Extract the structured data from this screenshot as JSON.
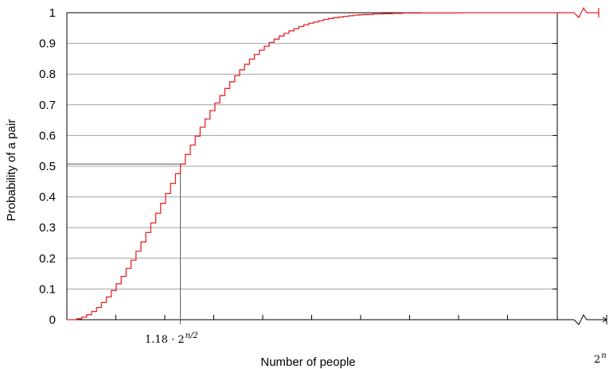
{
  "chart_data": {
    "type": "line",
    "title": "",
    "xlabel": "Number of people",
    "ylabel": "Probability of a pair",
    "ylim": [
      0,
      1
    ],
    "yticks": [
      "0",
      "0.1",
      "0.2",
      "0.3",
      "0.4",
      "0.5",
      "0.6",
      "0.7",
      "0.8",
      "0.9",
      "1"
    ],
    "grid": true,
    "legend": "none",
    "series": [
      {
        "color": "#e8262b",
        "style": "step",
        "points": [
          [
            0,
            0.0
          ],
          [
            2,
            0.003
          ],
          [
            3,
            0.008
          ],
          [
            4,
            0.016
          ],
          [
            5,
            0.027
          ],
          [
            6,
            0.04
          ],
          [
            7,
            0.056
          ],
          [
            8,
            0.074
          ],
          [
            9,
            0.095
          ],
          [
            10,
            0.117
          ],
          [
            11,
            0.141
          ],
          [
            12,
            0.167
          ],
          [
            13,
            0.194
          ],
          [
            14,
            0.223
          ],
          [
            15,
            0.253
          ],
          [
            16,
            0.284
          ],
          [
            17,
            0.315
          ],
          [
            18,
            0.347
          ],
          [
            19,
            0.379
          ],
          [
            20,
            0.411
          ],
          [
            21,
            0.444
          ],
          [
            22,
            0.476
          ],
          [
            23,
            0.507
          ],
          [
            24,
            0.538
          ],
          [
            25,
            0.569
          ],
          [
            26,
            0.598
          ],
          [
            27,
            0.627
          ],
          [
            28,
            0.654
          ],
          [
            29,
            0.681
          ],
          [
            30,
            0.706
          ],
          [
            31,
            0.73
          ],
          [
            32,
            0.753
          ],
          [
            33,
            0.775
          ],
          [
            34,
            0.795
          ],
          [
            35,
            0.814
          ],
          [
            36,
            0.832
          ],
          [
            37,
            0.849
          ],
          [
            38,
            0.864
          ],
          [
            39,
            0.878
          ],
          [
            40,
            0.891
          ],
          [
            41,
            0.903
          ],
          [
            42,
            0.914
          ],
          [
            43,
            0.924
          ],
          [
            44,
            0.933
          ],
          [
            45,
            0.941
          ],
          [
            46,
            0.948
          ],
          [
            47,
            0.955
          ],
          [
            48,
            0.961
          ],
          [
            49,
            0.966
          ],
          [
            50,
            0.97
          ],
          [
            51,
            0.974
          ],
          [
            52,
            0.978
          ],
          [
            53,
            0.981
          ],
          [
            54,
            0.984
          ],
          [
            55,
            0.986
          ],
          [
            56,
            0.988
          ],
          [
            57,
            0.99
          ],
          [
            58,
            0.992
          ],
          [
            59,
            0.993
          ],
          [
            60,
            0.994
          ],
          [
            62,
            0.996
          ],
          [
            64,
            0.997
          ],
          [
            66,
            0.998
          ],
          [
            68,
            0.999
          ],
          [
            72,
            0.9995
          ],
          [
            80,
            1.0
          ],
          [
            100,
            1.0
          ]
        ]
      }
    ],
    "annotation": {
      "x": 23,
      "y": 0.507,
      "label_base": "1.18 · 2",
      "label_exp": "n/2"
    },
    "axis_end_label_base": "2",
    "axis_end_label_exp": "n"
  },
  "colors": {
    "curve": "#e8262b",
    "grid": "#a0a0a0",
    "axis": "#000000"
  }
}
